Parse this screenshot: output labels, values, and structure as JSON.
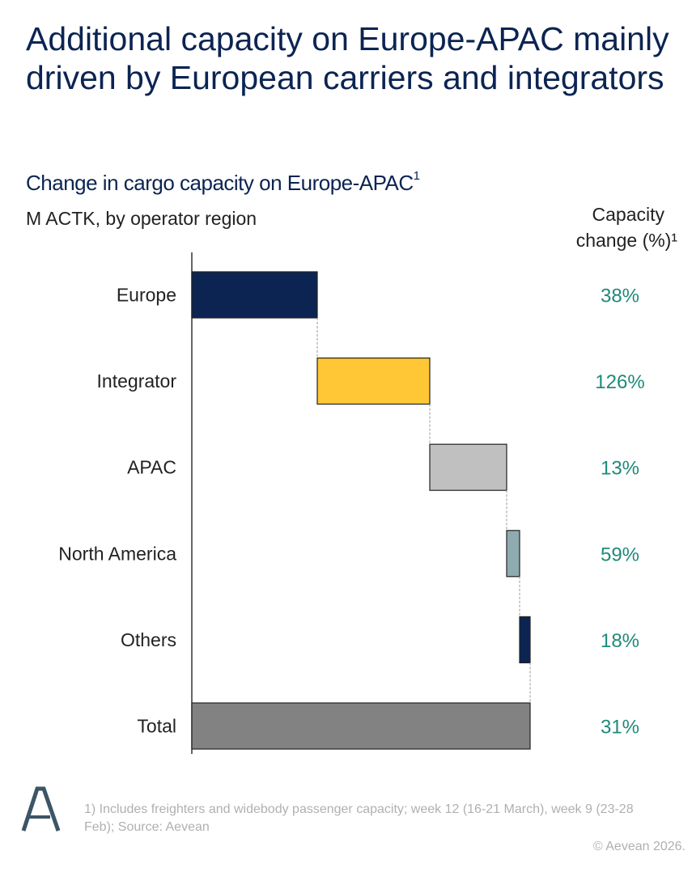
{
  "title": "Additional capacity on Europe-APAC mainly driven by European carriers and integrators",
  "subtitle": "Change in cargo capacity on Europe-APAC",
  "subtitle_sup": "1",
  "unit_label": "M ACTK, by operator region",
  "column_header": {
    "line1": "Capacity",
    "line2": "change (%)¹"
  },
  "footnote": "1) Includes freighters and widebody passenger capacity; week 12 (16-21 March), week 9 (23-28 Feb); Source: Aevean",
  "copyright": "© Aevean 2026.",
  "logo_text": "A",
  "chart_data": {
    "type": "bar",
    "subtype": "horizontal-waterfall",
    "title": "Change in cargo capacity on Europe-APAC",
    "xlabel": "M ACTK (relative, no axis scale shown)",
    "ylabel": "Operator region",
    "grid": false,
    "categories": [
      "Europe",
      "Integrator",
      "APAC",
      "North America",
      "Others",
      "Total"
    ],
    "values": [
      155,
      139,
      95,
      16,
      13,
      418
    ],
    "is_total": [
      false,
      false,
      false,
      false,
      false,
      true
    ],
    "pct_change": [
      "38%",
      "126%",
      "13%",
      "59%",
      "18%",
      "31%"
    ],
    "colors": [
      "#0b2452",
      "#ffc636",
      "#c0c0c0",
      "#8eabb0",
      "#0b2452",
      "#828282"
    ],
    "pct_color": "#1f8a7a"
  }
}
